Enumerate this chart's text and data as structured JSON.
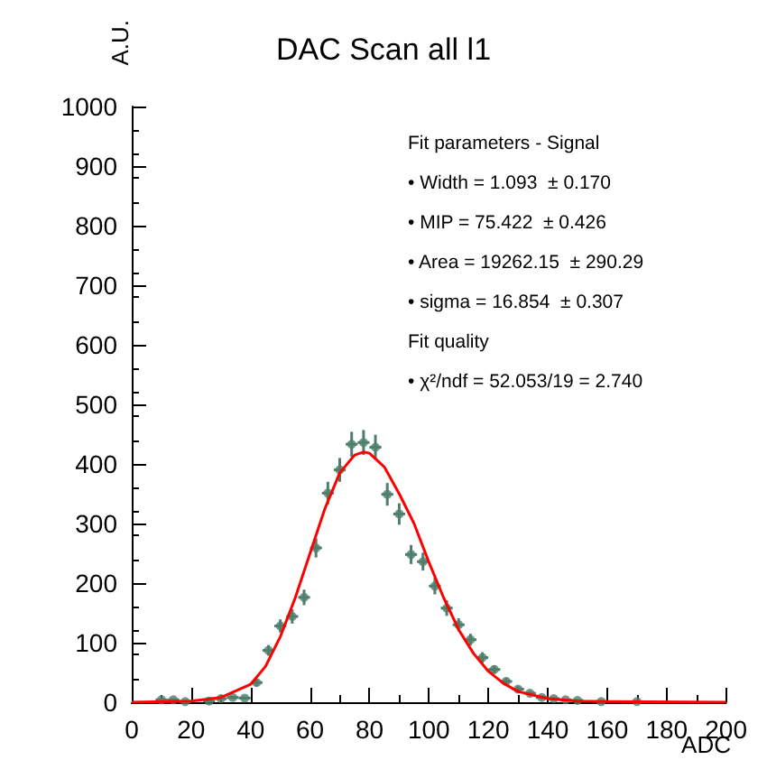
{
  "chart_data": {
    "type": "scatter",
    "title": "DAC Scan all l1",
    "xlabel": "ADC",
    "ylabel": "A.U.",
    "xlim": [
      0,
      200
    ],
    "xticks": [
      0,
      20,
      40,
      60,
      80,
      100,
      120,
      140,
      160,
      180,
      200
    ],
    "ylim": [
      0,
      1000
    ],
    "yticks": [
      0,
      100,
      200,
      300,
      400,
      500,
      600,
      700,
      800,
      900,
      1000
    ],
    "grid": false,
    "marker": "circle",
    "annotations": [
      "Fit parameters - Signal",
      "• Width = 1.093  ± 0.170",
      "• MIP = 75.422  ± 0.426",
      "• Area = 19262.15  ± 290.29",
      "• sigma = 16.854  ± 0.307",
      "Fit quality",
      "• χ²/ndf = 52.053/19 = 2.740"
    ],
    "series": [
      {
        "color": "#4f7f6c",
        "x": [
          10,
          14,
          18,
          26,
          30,
          34,
          38,
          42,
          46,
          50,
          54,
          58,
          62,
          66,
          70,
          74,
          78,
          82,
          86,
          90,
          94,
          98,
          102,
          106,
          110,
          114,
          118,
          122,
          126,
          130,
          134,
          138,
          142,
          146,
          150,
          158,
          170
        ],
        "values": [
          4,
          4,
          1,
          2,
          6,
          8,
          7,
          33,
          87,
          128,
          144,
          176,
          259,
          351,
          390,
          433,
          436,
          428,
          349,
          316,
          248,
          236,
          195,
          158,
          130,
          105,
          75,
          55,
          35,
          22,
          15,
          8,
          6,
          4,
          3,
          1,
          1
        ],
        "errors": [
          2,
          2,
          1,
          1.4,
          2.4,
          2.8,
          2.6,
          6,
          9,
          11,
          12,
          13,
          16,
          19,
          20,
          21,
          21,
          21,
          19,
          18,
          16,
          15,
          14,
          13,
          11,
          10,
          9,
          7,
          6,
          5,
          4,
          3,
          2.4,
          2,
          1.7,
          1,
          1
        ],
        "xerrors": [
          2,
          2,
          2,
          2,
          2,
          2,
          2,
          2,
          2,
          2,
          2,
          2,
          2,
          2,
          2,
          2,
          2,
          2,
          2,
          2,
          2,
          2,
          2,
          2,
          2,
          2,
          2,
          2,
          2,
          2,
          2,
          2,
          2,
          2,
          2,
          2,
          2
        ]
      },
      {
        "type": "line",
        "color": "#ff0000",
        "marker": "none",
        "x": [
          0,
          20,
          30,
          40,
          45,
          50,
          55,
          60,
          65,
          70,
          75,
          78,
          80,
          85,
          90,
          95,
          100,
          105,
          110,
          115,
          120,
          125,
          130,
          140,
          150,
          160,
          200
        ],
        "values": [
          0,
          2,
          8,
          30,
          60,
          110,
          175,
          250,
          325,
          385,
          415,
          420,
          418,
          395,
          350,
          300,
          235,
          175,
          122,
          82,
          52,
          32,
          18,
          6,
          2,
          1,
          0
        ]
      }
    ]
  }
}
